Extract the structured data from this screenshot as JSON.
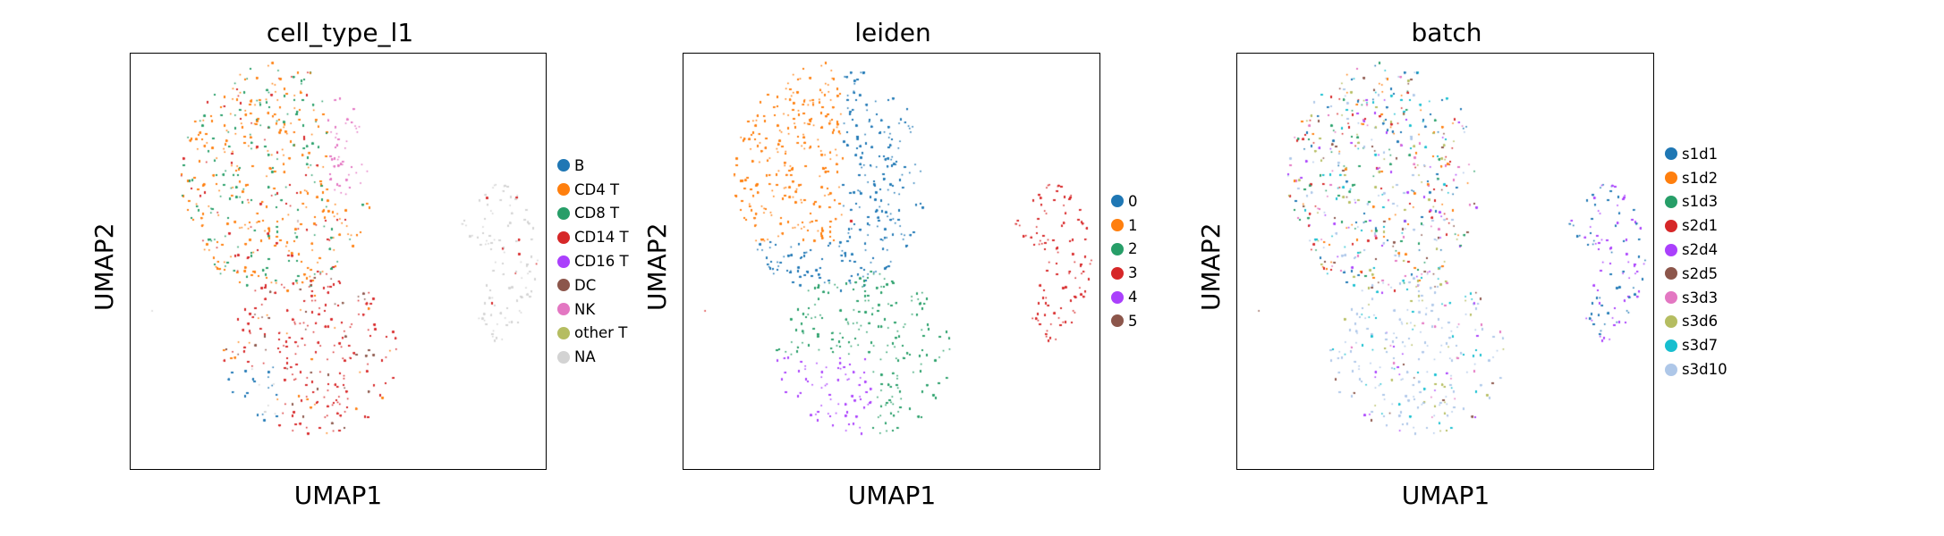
{
  "chart_data": [
    {
      "type": "scatter",
      "title": "cell_type_l1",
      "xlabel": "UMAP1",
      "ylabel": "UMAP2",
      "legend_placement": "right",
      "legend": [
        {
          "label": "B",
          "color": "#1f77b4"
        },
        {
          "label": "CD4 T",
          "color": "#ff7f0e"
        },
        {
          "label": "CD8 T",
          "color": "#279e68"
        },
        {
          "label": "CD14 T",
          "color": "#d62728"
        },
        {
          "label": "CD16 T",
          "color": "#aa40fc"
        },
        {
          "label": "DC",
          "color": "#8c564b"
        },
        {
          "label": "NK",
          "color": "#e377c2"
        },
        {
          "label": "other T",
          "color": "#b5bd61"
        },
        {
          "label": "NA",
          "color": "#d3d3d3"
        }
      ]
    },
    {
      "type": "scatter",
      "title": "leiden",
      "xlabel": "UMAP1",
      "ylabel": "UMAP2",
      "legend_placement": "right",
      "legend": [
        {
          "label": "0",
          "color": "#1f77b4"
        },
        {
          "label": "1",
          "color": "#ff7f0e"
        },
        {
          "label": "2",
          "color": "#279e68"
        },
        {
          "label": "3",
          "color": "#d62728"
        },
        {
          "label": "4",
          "color": "#aa40fc"
        },
        {
          "label": "5",
          "color": "#8c564b"
        }
      ]
    },
    {
      "type": "scatter",
      "title": "batch",
      "xlabel": "UMAP1",
      "ylabel": "UMAP2",
      "legend_placement": "right",
      "legend": [
        {
          "label": "s1d1",
          "color": "#1f77b4"
        },
        {
          "label": "s1d2",
          "color": "#ff7f0e"
        },
        {
          "label": "s1d3",
          "color": "#279e68"
        },
        {
          "label": "s2d1",
          "color": "#d62728"
        },
        {
          "label": "s2d4",
          "color": "#aa40fc"
        },
        {
          "label": "s2d5",
          "color": "#8c564b"
        },
        {
          "label": "s3d3",
          "color": "#e377c2"
        },
        {
          "label": "s3d6",
          "color": "#b5bd61"
        },
        {
          "label": "s3d7",
          "color": "#17becf"
        },
        {
          "label": "s3d10",
          "color": "#aec7e8"
        }
      ]
    }
  ]
}
